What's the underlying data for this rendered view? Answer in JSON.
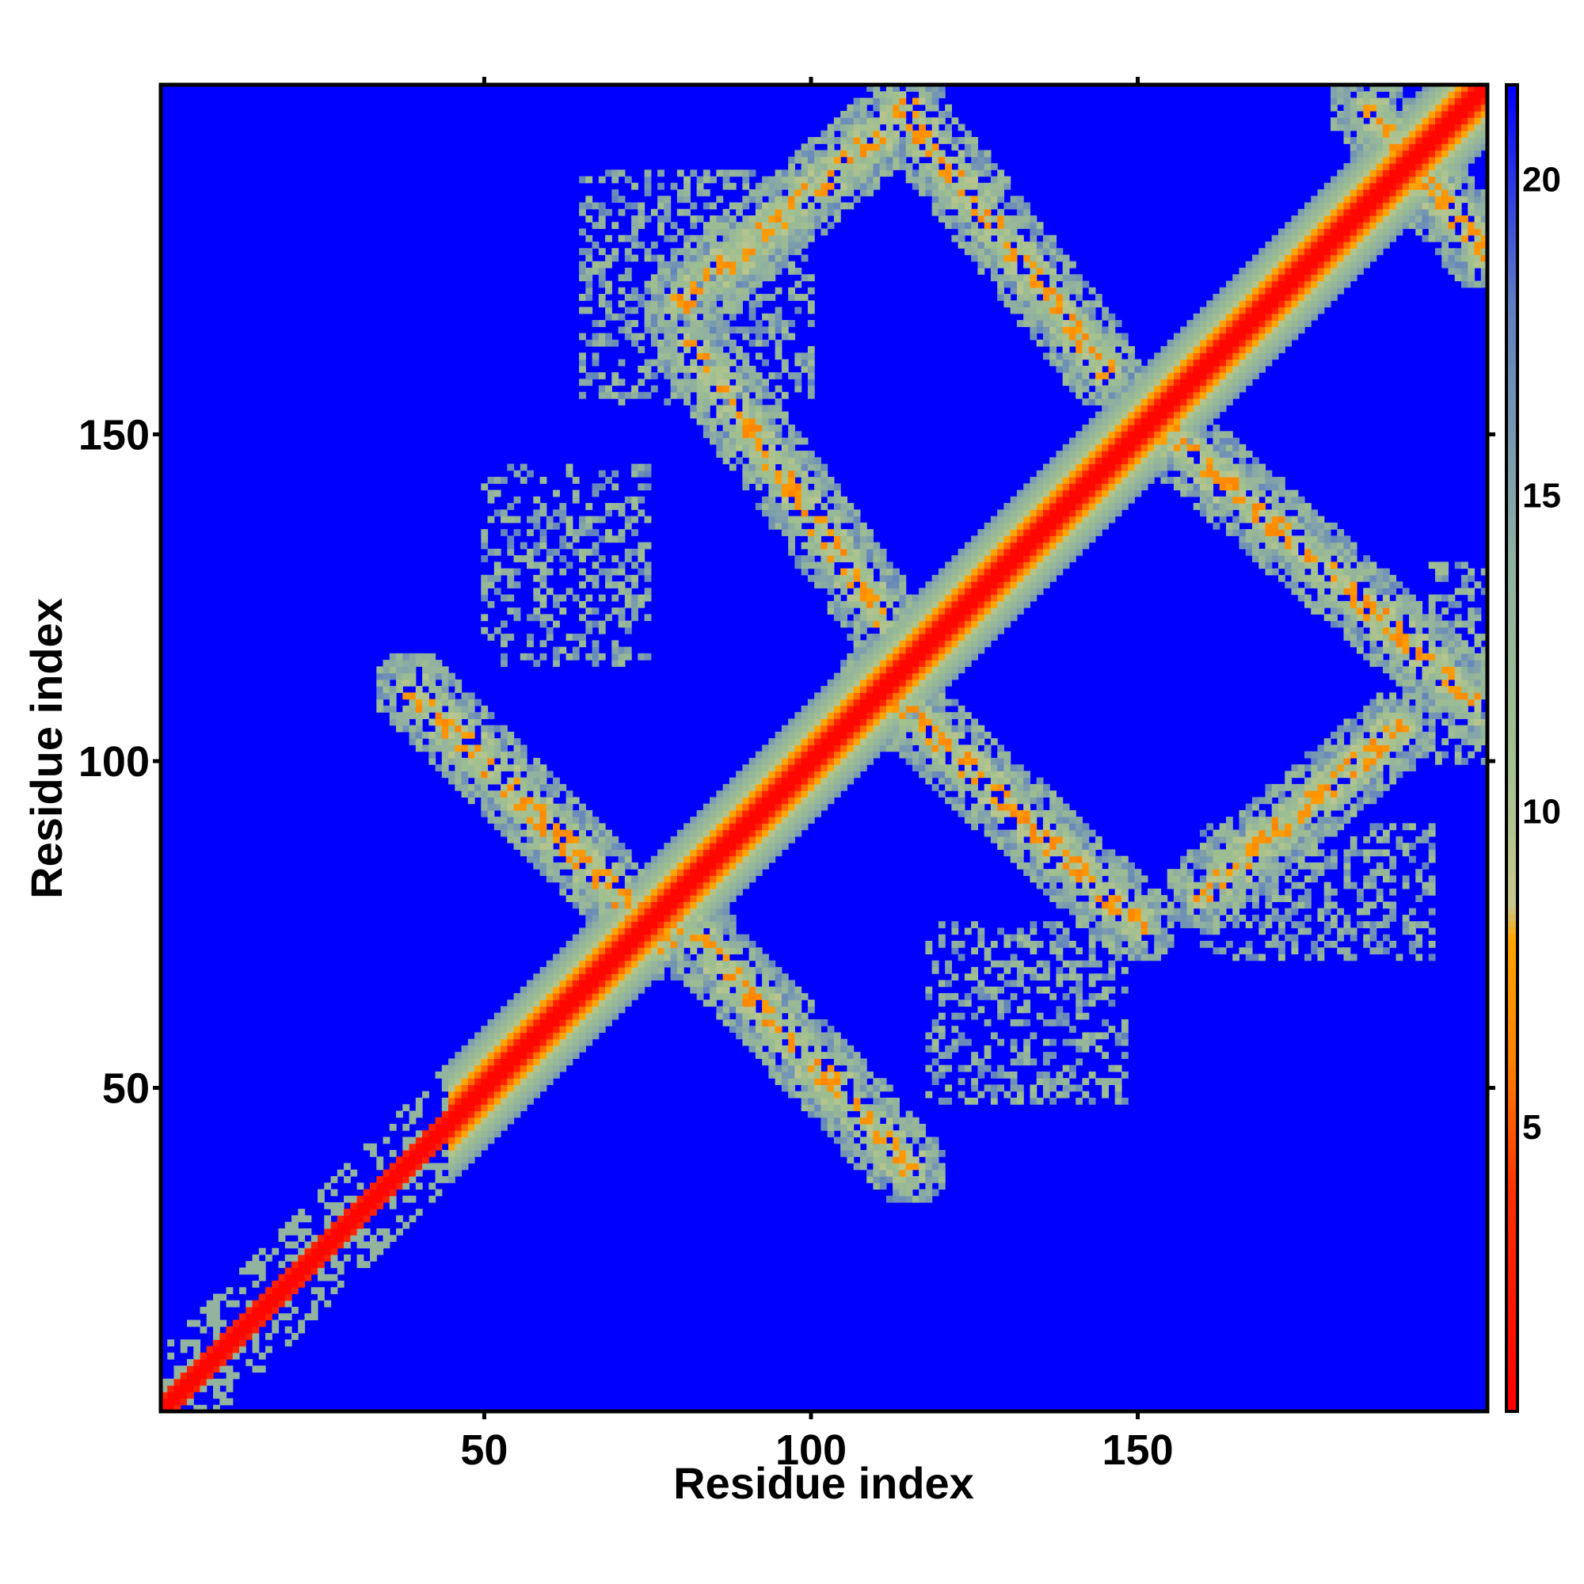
{
  "chart_data": {
    "type": "heatmap",
    "title": "",
    "xlabel": "Residue index",
    "ylabel": "Residue index",
    "xlim": [
      1,
      203
    ],
    "ylim": [
      1,
      203
    ],
    "x_ticks": [
      50,
      100,
      150
    ],
    "y_ticks": [
      50,
      100,
      150
    ],
    "x_tick_labels": [
      "50",
      "100",
      "150"
    ],
    "y_tick_labels": [
      "50",
      "100",
      "150"
    ],
    "colorbar": {
      "min": 0.5,
      "max": 21.5,
      "ticks": [
        5,
        10,
        15,
        20
      ],
      "tick_labels": [
        "5",
        "10",
        "15",
        "20"
      ],
      "placement": "right"
    },
    "color_scale": [
      {
        "value": 0.5,
        "color": "#ff0000"
      },
      {
        "value": 4.0,
        "color": "#ff3000"
      },
      {
        "value": 6.0,
        "color": "#ff8000"
      },
      {
        "value": 8.0,
        "color": "#ffa500"
      },
      {
        "value": 8.5,
        "color": "#c8c88c"
      },
      {
        "value": 11.0,
        "color": "#a0c090"
      },
      {
        "value": 14.0,
        "color": "#8fb0a0"
      },
      {
        "value": 18.0,
        "color": "#5f80c0"
      },
      {
        "value": 21.5,
        "color": "#0000ff"
      }
    ],
    "background_value": 21.5,
    "structure": {
      "diagonal": {
        "start": 1,
        "end": 203
      },
      "contact_bands": [
        {
          "x": [
            39,
            78
          ],
          "y": [
            111,
            72
          ]
        },
        {
          "x": [
            78,
            115
          ],
          "y": [
            78,
            38
          ]
        },
        {
          "x": [
            82,
            111
          ],
          "y": [
            163,
            122
          ]
        },
        {
          "x": [
            110,
            150
          ],
          "y": [
            112,
            75
          ]
        },
        {
          "x": [
            114,
            145
          ],
          "y": [
            200,
            160
          ]
        },
        {
          "x": [
            155,
            203
          ],
          "y": [
            150,
            108
          ]
        },
        {
          "x": [
            160,
            190
          ],
          "y": [
            80,
            105
          ]
        },
        {
          "x": [
            80,
            115
          ],
          "y": [
            170,
            200
          ]
        },
        {
          "x": [
            185,
            203
          ],
          "y": [
            200,
            178
          ]
        }
      ],
      "sparse_patches": [
        {
          "x": [
            50,
            75
          ],
          "y": [
            115,
            145
          ]
        },
        {
          "x": [
            65,
            100
          ],
          "y": [
            155,
            190
          ]
        },
        {
          "x": [
            118,
            148
          ],
          "y": [
            48,
            75
          ]
        },
        {
          "x": [
            160,
            195
          ],
          "y": [
            70,
            90
          ]
        },
        {
          "x": [
            195,
            203
          ],
          "y": [
            100,
            130
          ]
        }
      ]
    }
  }
}
